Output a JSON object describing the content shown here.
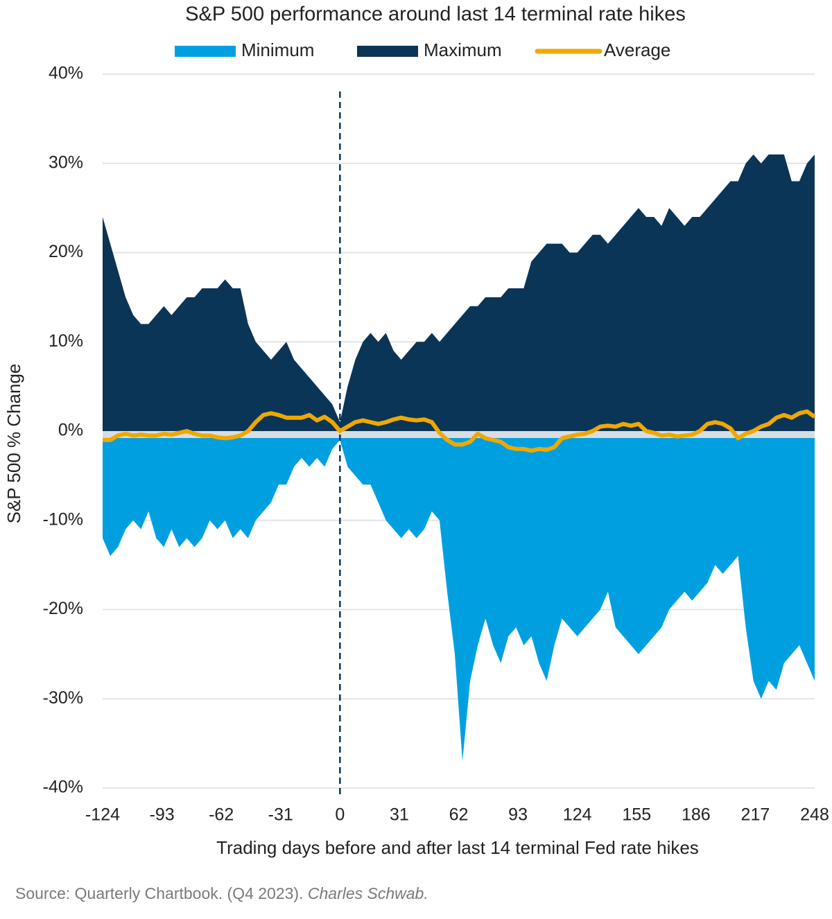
{
  "chart_data": {
    "type": "area",
    "title": "S&P 500 performance around last 14 terminal rate hikes",
    "xlabel": "Trading days before and after last 14 terminal Fed rate hikes",
    "ylabel": "S&P 500 % Change",
    "source": "Source: Quarterly Chartbook. (Q4 2023).",
    "source_publisher": "Charles Schwab.",
    "x": [
      -124,
      -120,
      -116,
      -112,
      -108,
      -104,
      -100,
      -96,
      -92,
      -88,
      -84,
      -80,
      -76,
      -72,
      -68,
      -64,
      -60,
      -56,
      -52,
      -48,
      -44,
      -40,
      -36,
      -32,
      -28,
      -24,
      -20,
      -16,
      -12,
      -8,
      -4,
      0,
      4,
      8,
      12,
      16,
      20,
      24,
      28,
      32,
      36,
      40,
      44,
      48,
      52,
      56,
      60,
      64,
      68,
      72,
      76,
      80,
      84,
      88,
      92,
      96,
      100,
      104,
      108,
      112,
      116,
      120,
      124,
      128,
      132,
      136,
      140,
      144,
      148,
      152,
      156,
      160,
      164,
      168,
      172,
      176,
      180,
      184,
      188,
      192,
      196,
      200,
      204,
      208,
      212,
      216,
      220,
      224,
      228,
      232,
      236,
      240,
      244,
      248
    ],
    "series": [
      {
        "name": "Minimum",
        "color": "#00a0e0",
        "kind": "area",
        "values": [
          -12,
          -14,
          -13,
          -11,
          -10,
          -11,
          -9,
          -12,
          -13,
          -11,
          -13,
          -12,
          -13,
          -12,
          -10,
          -11,
          -10,
          -12,
          -11,
          -12,
          -10,
          -9,
          -8,
          -6,
          -6,
          -4,
          -3,
          -4,
          -3,
          -4,
          -2,
          -1,
          -4,
          -5,
          -6,
          -6,
          -8,
          -10,
          -11,
          -12,
          -11,
          -12,
          -11,
          -9,
          -10,
          -18,
          -25,
          -37,
          -28,
          -24,
          -21,
          -24,
          -26,
          -23,
          -22,
          -24,
          -23,
          -26,
          -28,
          -24,
          -21,
          -22,
          -23,
          -22,
          -21,
          -20,
          -18,
          -22,
          -23,
          -24,
          -25,
          -24,
          -23,
          -22,
          -20,
          -19,
          -18,
          -19,
          -18,
          -17,
          -15,
          -16,
          -15,
          -14,
          -22,
          -28,
          -30,
          -28,
          -29,
          -26,
          -25,
          -24,
          -26,
          -28
        ]
      },
      {
        "name": "Maximum",
        "color": "#0a3557",
        "kind": "area",
        "values": [
          24,
          21,
          18,
          15,
          13,
          12,
          12,
          13,
          14,
          13,
          14,
          15,
          15,
          16,
          16,
          16,
          17,
          16,
          16,
          12,
          10,
          9,
          8,
          9,
          10,
          8,
          7,
          6,
          5,
          4,
          3,
          1,
          5,
          8,
          10,
          11,
          10,
          11,
          9,
          8,
          9,
          10,
          10,
          11,
          10,
          11,
          12,
          13,
          14,
          14,
          15,
          15,
          15,
          16,
          16,
          16,
          19,
          20,
          21,
          21,
          21,
          20,
          20,
          21,
          22,
          22,
          21,
          22,
          23,
          24,
          25,
          24,
          24,
          23,
          25,
          24,
          23,
          24,
          24,
          25,
          26,
          27,
          28,
          28,
          30,
          31,
          30,
          31,
          31,
          31,
          28,
          28,
          30,
          31
        ]
      },
      {
        "name": "Average",
        "color": "#f0a800",
        "kind": "line",
        "values": [
          -1,
          -1,
          -0.5,
          -0.3,
          -0.5,
          -0.4,
          -0.5,
          -0.5,
          -0.3,
          -0.4,
          -0.2,
          0,
          -0.3,
          -0.5,
          -0.5,
          -0.7,
          -0.8,
          -0.7,
          -0.5,
          0,
          1,
          1.8,
          2,
          1.8,
          1.5,
          1.5,
          1.5,
          1.8,
          1.2,
          1.6,
          1,
          0,
          0.5,
          1,
          1.2,
          1,
          0.8,
          1,
          1.3,
          1.5,
          1.3,
          1.2,
          1.3,
          1,
          -0.2,
          -1,
          -1.5,
          -1.5,
          -1.2,
          -0.3,
          -0.8,
          -1,
          -1.2,
          -1.8,
          -2,
          -2,
          -2.2,
          -2,
          -2.1,
          -1.8,
          -0.8,
          -0.6,
          -0.4,
          -0.3,
          0,
          0.5,
          0.6,
          0.5,
          0.8,
          0.6,
          0.8,
          0,
          -0.2,
          -0.5,
          -0.4,
          -0.6,
          -0.5,
          -0.4,
          0,
          0.8,
          1,
          0.8,
          0.3,
          -0.8,
          -0.3,
          0,
          0.5,
          0.8,
          1.5,
          1.8,
          1.5,
          2,
          2.2,
          1.6
        ]
      }
    ],
    "xlim": [
      -124,
      248
    ],
    "xticks": [
      -124,
      -93,
      -62,
      -31,
      0,
      31,
      62,
      93,
      124,
      155,
      186,
      217,
      248
    ],
    "ylim": [
      -40,
      40
    ],
    "yticks": [
      {
        "value": -40,
        "label": "-40%"
      },
      {
        "value": -30,
        "label": "-30%"
      },
      {
        "value": -20,
        "label": "-20%"
      },
      {
        "value": -10,
        "label": "-10%"
      },
      {
        "value": 0,
        "label": "0%"
      },
      {
        "value": 10,
        "label": "10%"
      },
      {
        "value": 20,
        "label": "20%"
      },
      {
        "value": 30,
        "label": "30%"
      },
      {
        "value": 40,
        "label": "40%"
      }
    ],
    "grid": true,
    "legend": "top"
  }
}
